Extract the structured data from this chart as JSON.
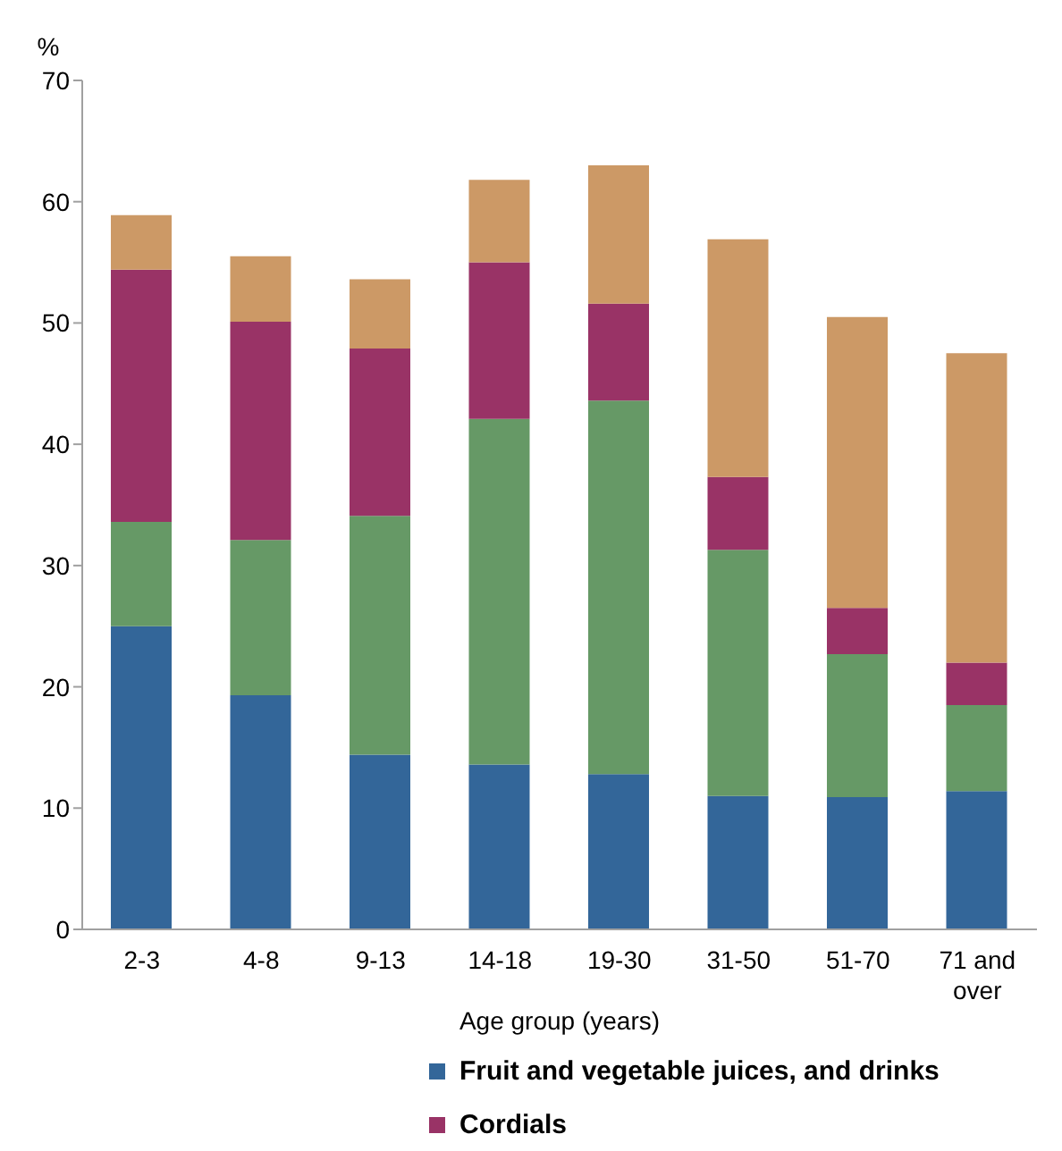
{
  "chart_data": {
    "type": "bar",
    "stacked": true,
    "xlabel": "Age group (years)",
    "ylabel": "%",
    "categories": [
      "2-3",
      "4-8",
      "9-13",
      "14-18",
      "19-30",
      "31-50",
      "51-70",
      "71 and over"
    ],
    "series": [
      {
        "name": "Fruit and vegetable juices, and drinks",
        "color": "#336699",
        "values": [
          25,
          19.3,
          14.4,
          13.6,
          12.8,
          11,
          10.9,
          11.4
        ]
      },
      {
        "color": "#669966",
        "values": [
          8.6,
          12.8,
          19.7,
          28.5,
          30.8,
          20.3,
          11.8,
          7.1
        ]
      },
      {
        "name": "Cordials",
        "color": "#993366",
        "values": [
          20.8,
          18,
          13.8,
          12.9,
          8,
          6,
          3.8,
          3.5
        ]
      },
      {
        "color": "#cc9966",
        "values": [
          4.5,
          5.4,
          5.7,
          6.8,
          11.4,
          19.6,
          24,
          25.5
        ]
      }
    ],
    "ylim": [
      0,
      70
    ],
    "yticks": [
      0,
      10,
      20,
      30,
      40,
      50,
      60,
      70
    ],
    "legend": "bottom"
  }
}
